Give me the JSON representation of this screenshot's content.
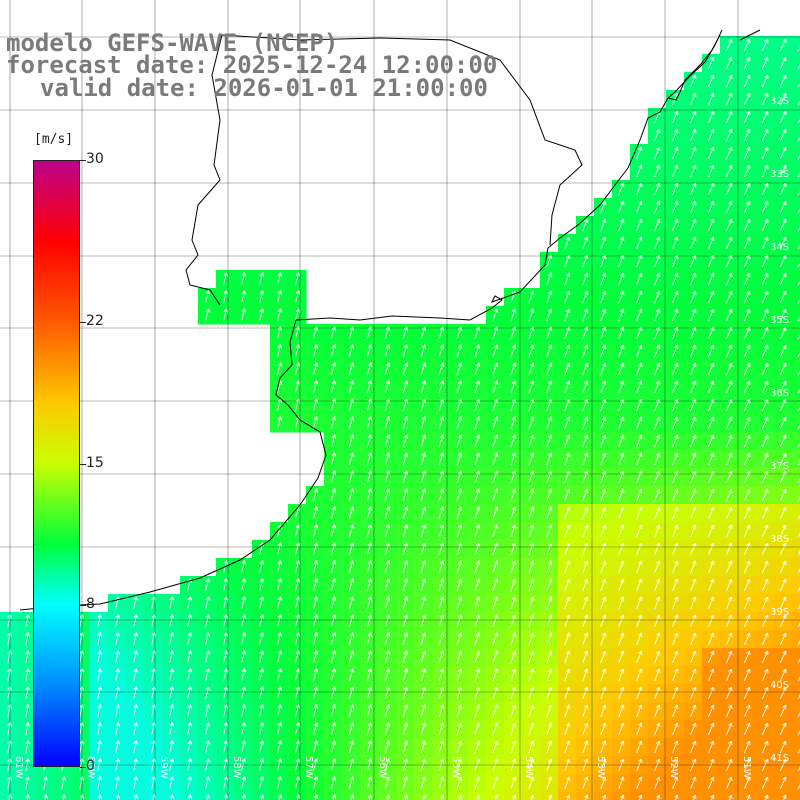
{
  "header": {
    "model": "modelo GEFS-WAVE (NCEP)",
    "forecast": "forecast date: 2025-12-24 12:00:00",
    "valid": "valid date: 2026-01-01 21:00:00"
  },
  "legend": {
    "unit": "[m/s]",
    "ticks": [
      {
        "value": 30,
        "label": "30"
      },
      {
        "value": 22,
        "label": "22"
      },
      {
        "value": 15,
        "label": "15"
      },
      {
        "value": 8,
        "label": "8"
      },
      {
        "value": 0,
        "label": "0"
      }
    ],
    "min": 0,
    "max": 30
  },
  "map": {
    "lon_labels": [
      "61W",
      "60W",
      "59W",
      "58W",
      "57W",
      "56W",
      "55W",
      "54W",
      "53W",
      "52W",
      "51W"
    ],
    "lat_labels": [
      "32S",
      "33S",
      "34S",
      "35S",
      "36S",
      "37S",
      "38S",
      "39S",
      "40S",
      "41S"
    ]
  },
  "colors": {
    "grid": "#000000",
    "coast": "#000000",
    "arrows": "#ffffff",
    "header_text": "#7a7a7a"
  }
}
